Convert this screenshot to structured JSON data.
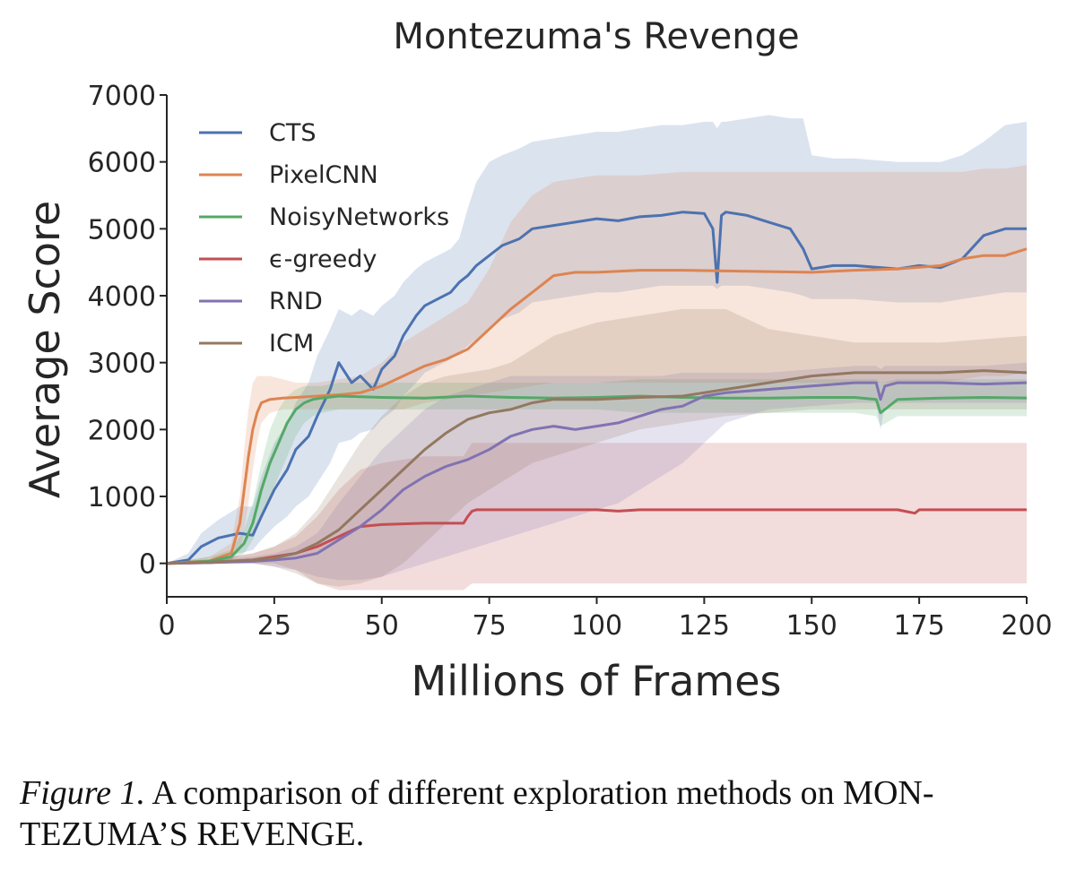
{
  "chart_data": {
    "type": "line",
    "title": "Montezuma's Revenge",
    "xlabel": "Millions of Frames",
    "ylabel": "Average Score",
    "xlim": [
      0,
      200
    ],
    "ylim": [
      -500,
      7000
    ],
    "xticks": [
      0,
      25,
      50,
      75,
      100,
      125,
      150,
      175,
      200
    ],
    "yticks": [
      0,
      1000,
      2000,
      3000,
      4000,
      5000,
      6000,
      7000
    ],
    "grid": false,
    "legend_position": "top-left",
    "series": [
      {
        "name": "CTS",
        "color": "#4c72b0",
        "x": [
          0,
          5,
          8,
          12,
          17,
          20,
          22,
          25,
          28,
          30,
          33,
          35,
          38,
          40,
          43,
          45,
          48,
          50,
          53,
          55,
          58,
          60,
          63,
          66,
          68,
          70,
          72,
          75,
          78,
          82,
          85,
          90,
          95,
          100,
          105,
          110,
          115,
          120,
          125,
          127,
          128,
          129,
          130,
          135,
          140,
          145,
          148,
          150,
          155,
          160,
          170,
          175,
          180,
          185,
          190,
          195,
          200
        ],
        "mean": [
          0,
          50,
          250,
          380,
          450,
          420,
          700,
          1100,
          1400,
          1700,
          1900,
          2200,
          2600,
          3000,
          2700,
          2800,
          2600,
          2900,
          3100,
          3400,
          3700,
          3850,
          3950,
          4050,
          4200,
          4300,
          4450,
          4600,
          4750,
          4850,
          5000,
          5050,
          5100,
          5150,
          5120,
          5180,
          5200,
          5250,
          5230,
          5000,
          4200,
          5200,
          5250,
          5200,
          5100,
          5000,
          4700,
          4400,
          4450,
          4450,
          4400,
          4450,
          4420,
          4550,
          4900,
          5000,
          5000
        ],
        "lower": [
          0,
          0,
          50,
          100,
          150,
          200,
          350,
          550,
          700,
          850,
          1000,
          1200,
          1500,
          1800,
          1850,
          1950,
          2000,
          2150,
          2300,
          2500,
          2700,
          2850,
          2950,
          3050,
          3150,
          3250,
          3350,
          3500,
          3650,
          3750,
          3900,
          3950,
          4000,
          4050,
          4050,
          4100,
          4150,
          4150,
          4150,
          4150,
          4100,
          4150,
          4150,
          4150,
          4100,
          4050,
          4000,
          3950,
          3950,
          3950,
          3900,
          3900,
          3900,
          3950,
          4000,
          4050,
          4050
        ],
        "upper": [
          0,
          150,
          450,
          650,
          850,
          850,
          1300,
          1800,
          2100,
          2400,
          2700,
          3100,
          3500,
          3800,
          3700,
          3800,
          3700,
          3850,
          4000,
          4200,
          4400,
          4500,
          4600,
          4700,
          4850,
          5300,
          5700,
          6000,
          6100,
          6200,
          6300,
          6350,
          6400,
          6450,
          6450,
          6500,
          6550,
          6550,
          6600,
          6600,
          6500,
          6600,
          6600,
          6650,
          6700,
          6650,
          6650,
          6100,
          6050,
          6050,
          6000,
          6000,
          6000,
          6100,
          6300,
          6550,
          6600
        ]
      },
      {
        "name": "PixelCNN",
        "color": "#dd8452",
        "x": [
          0,
          5,
          10,
          15,
          17,
          18,
          19,
          20,
          21,
          22,
          24,
          27,
          30,
          35,
          40,
          45,
          50,
          55,
          60,
          65,
          70,
          75,
          80,
          85,
          90,
          95,
          100,
          110,
          120,
          130,
          140,
          150,
          160,
          170,
          180,
          185,
          190,
          195,
          200
        ],
        "mean": [
          0,
          20,
          40,
          150,
          600,
          1100,
          1600,
          2000,
          2250,
          2400,
          2450,
          2470,
          2480,
          2500,
          2520,
          2550,
          2650,
          2800,
          2950,
          3050,
          3200,
          3500,
          3800,
          4050,
          4300,
          4350,
          4350,
          4380,
          4380,
          4370,
          4360,
          4350,
          4380,
          4400,
          4450,
          4550,
          4600,
          4600,
          4700
        ],
        "lower": [
          0,
          0,
          0,
          50,
          200,
          500,
          900,
          1400,
          1800,
          2100,
          2250,
          2300,
          2300,
          2300,
          2300,
          2300,
          2300,
          2300,
          2400,
          2450,
          2500,
          2550,
          2600,
          2650,
          2700,
          2700,
          2700,
          2700,
          2700,
          2700,
          2700,
          2700,
          2700,
          2700,
          2700,
          2750,
          2800,
          2800,
          2850
        ],
        "upper": [
          0,
          50,
          100,
          300,
          1000,
          1700,
          2300,
          2700,
          2800,
          2800,
          2800,
          2750,
          2700,
          2700,
          2750,
          2800,
          3000,
          3300,
          3500,
          3700,
          3900,
          4400,
          5100,
          5500,
          5700,
          5750,
          5800,
          5800,
          5850,
          5850,
          5850,
          5850,
          5850,
          5850,
          5850,
          5850,
          5900,
          5900,
          5950
        ]
      },
      {
        "name": "NoisyNetworks",
        "color": "#55a868",
        "x": [
          0,
          10,
          15,
          18,
          20,
          22,
          24,
          26,
          28,
          30,
          32,
          34,
          36,
          40,
          50,
          60,
          70,
          80,
          90,
          100,
          110,
          120,
          130,
          140,
          150,
          160,
          165,
          166,
          170,
          180,
          190,
          200
        ],
        "mean": [
          0,
          30,
          100,
          300,
          600,
          1100,
          1500,
          1800,
          2100,
          2300,
          2400,
          2450,
          2470,
          2500,
          2480,
          2470,
          2500,
          2480,
          2470,
          2480,
          2500,
          2480,
          2470,
          2470,
          2480,
          2480,
          2450,
          2250,
          2450,
          2470,
          2480,
          2470
        ],
        "lower": [
          0,
          0,
          50,
          150,
          350,
          700,
          1000,
          1300,
          1600,
          1900,
          2100,
          2200,
          2250,
          2300,
          2300,
          2300,
          2300,
          2300,
          2300,
          2300,
          2250,
          2250,
          2250,
          2250,
          2250,
          2250,
          2200,
          2050,
          2200,
          2200,
          2200,
          2200
        ],
        "upper": [
          0,
          100,
          200,
          500,
          900,
          1500,
          2000,
          2300,
          2500,
          2600,
          2650,
          2650,
          2650,
          2700,
          2700,
          2700,
          2700,
          2700,
          2700,
          2700,
          2750,
          2750,
          2750,
          2750,
          2750,
          2750,
          2750,
          2700,
          2750,
          2750,
          2750,
          2750
        ]
      },
      {
        "name": "ϵ-greedy",
        "color": "#c44e52",
        "x": [
          0,
          10,
          20,
          25,
          30,
          35,
          40,
          45,
          50,
          55,
          60,
          65,
          69,
          70,
          71,
          72,
          80,
          90,
          100,
          105,
          110,
          115,
          120,
          130,
          140,
          150,
          160,
          170,
          174,
          175,
          180,
          190,
          200
        ],
        "mean": [
          0,
          10,
          50,
          100,
          150,
          250,
          400,
          550,
          580,
          590,
          600,
          600,
          600,
          700,
          780,
          800,
          800,
          800,
          800,
          780,
          800,
          800,
          800,
          800,
          800,
          800,
          800,
          800,
          750,
          800,
          800,
          800,
          800
        ],
        "lower": [
          0,
          0,
          0,
          0,
          -100,
          -300,
          -400,
          -400,
          -400,
          -400,
          -400,
          -400,
          -400,
          -350,
          -300,
          -300,
          -300,
          -300,
          -300,
          -300,
          -300,
          -300,
          -300,
          -300,
          -300,
          -300,
          -300,
          -300,
          -300,
          -300,
          -300,
          -300,
          -300
        ],
        "upper": [
          0,
          50,
          150,
          250,
          400,
          700,
          1100,
          1400,
          1500,
          1550,
          1600,
          1600,
          1600,
          1700,
          1800,
          1800,
          1800,
          1800,
          1800,
          1800,
          1800,
          1800,
          1800,
          1800,
          1800,
          1800,
          1800,
          1800,
          1800,
          1800,
          1800,
          1800,
          1800
        ]
      },
      {
        "name": "RND",
        "color": "#8172b2",
        "x": [
          0,
          10,
          20,
          25,
          30,
          35,
          40,
          45,
          50,
          55,
          60,
          65,
          70,
          75,
          80,
          85,
          90,
          95,
          100,
          105,
          110,
          115,
          120,
          125,
          130,
          140,
          150,
          160,
          165,
          166,
          167,
          170,
          180,
          190,
          200
        ],
        "mean": [
          0,
          10,
          30,
          50,
          80,
          150,
          350,
          550,
          800,
          1100,
          1300,
          1450,
          1550,
          1700,
          1900,
          2000,
          2050,
          2000,
          2050,
          2100,
          2200,
          2300,
          2350,
          2500,
          2550,
          2600,
          2650,
          2700,
          2700,
          2450,
          2650,
          2700,
          2700,
          2680,
          2700
        ],
        "lower": [
          0,
          0,
          0,
          -50,
          -100,
          -200,
          -250,
          -250,
          -200,
          -100,
          0,
          100,
          200,
          300,
          400,
          500,
          600,
          700,
          800,
          900,
          1100,
          1300,
          1500,
          1800,
          2100,
          2300,
          2350,
          2400,
          2400,
          2000,
          2350,
          2400,
          2400,
          2400,
          2400
        ],
        "upper": [
          0,
          50,
          100,
          150,
          250,
          450,
          900,
          1300,
          1700,
          2000,
          2300,
          2500,
          2600,
          2700,
          2800,
          2800,
          2800,
          2800,
          2800,
          2800,
          2800,
          2800,
          2850,
          2850,
          2850,
          2850,
          2900,
          2950,
          2950,
          2900,
          2950,
          2950,
          2950,
          2950,
          3000
        ]
      },
      {
        "name": "ICM",
        "color": "#937860",
        "x": [
          0,
          10,
          20,
          25,
          30,
          35,
          40,
          45,
          50,
          55,
          60,
          65,
          70,
          75,
          80,
          85,
          90,
          95,
          100,
          110,
          120,
          130,
          140,
          150,
          160,
          170,
          180,
          190,
          200
        ],
        "mean": [
          0,
          20,
          50,
          80,
          150,
          300,
          500,
          800,
          1100,
          1400,
          1700,
          1950,
          2150,
          2250,
          2300,
          2400,
          2450,
          2450,
          2450,
          2480,
          2500,
          2600,
          2700,
          2800,
          2850,
          2850,
          2850,
          2880,
          2850
        ],
        "lower": [
          0,
          0,
          0,
          -50,
          -150,
          -300,
          -350,
          -300,
          -200,
          0,
          300,
          600,
          900,
          1100,
          1300,
          1500,
          1600,
          1700,
          1800,
          2000,
          2100,
          2200,
          2250,
          2300,
          2300,
          2300,
          2300,
          2300,
          2300
        ],
        "upper": [
          0,
          50,
          150,
          250,
          450,
          800,
          1300,
          1800,
          2200,
          2500,
          2700,
          2800,
          2850,
          2900,
          3000,
          3200,
          3400,
          3500,
          3600,
          3700,
          3800,
          3800,
          3500,
          3400,
          3300,
          3300,
          3300,
          3350,
          3400
        ]
      }
    ]
  },
  "caption": {
    "label": "Figure 1.",
    "text": " A comparison of different exploration methods on MON-TEZUMA’S REVENGE."
  }
}
